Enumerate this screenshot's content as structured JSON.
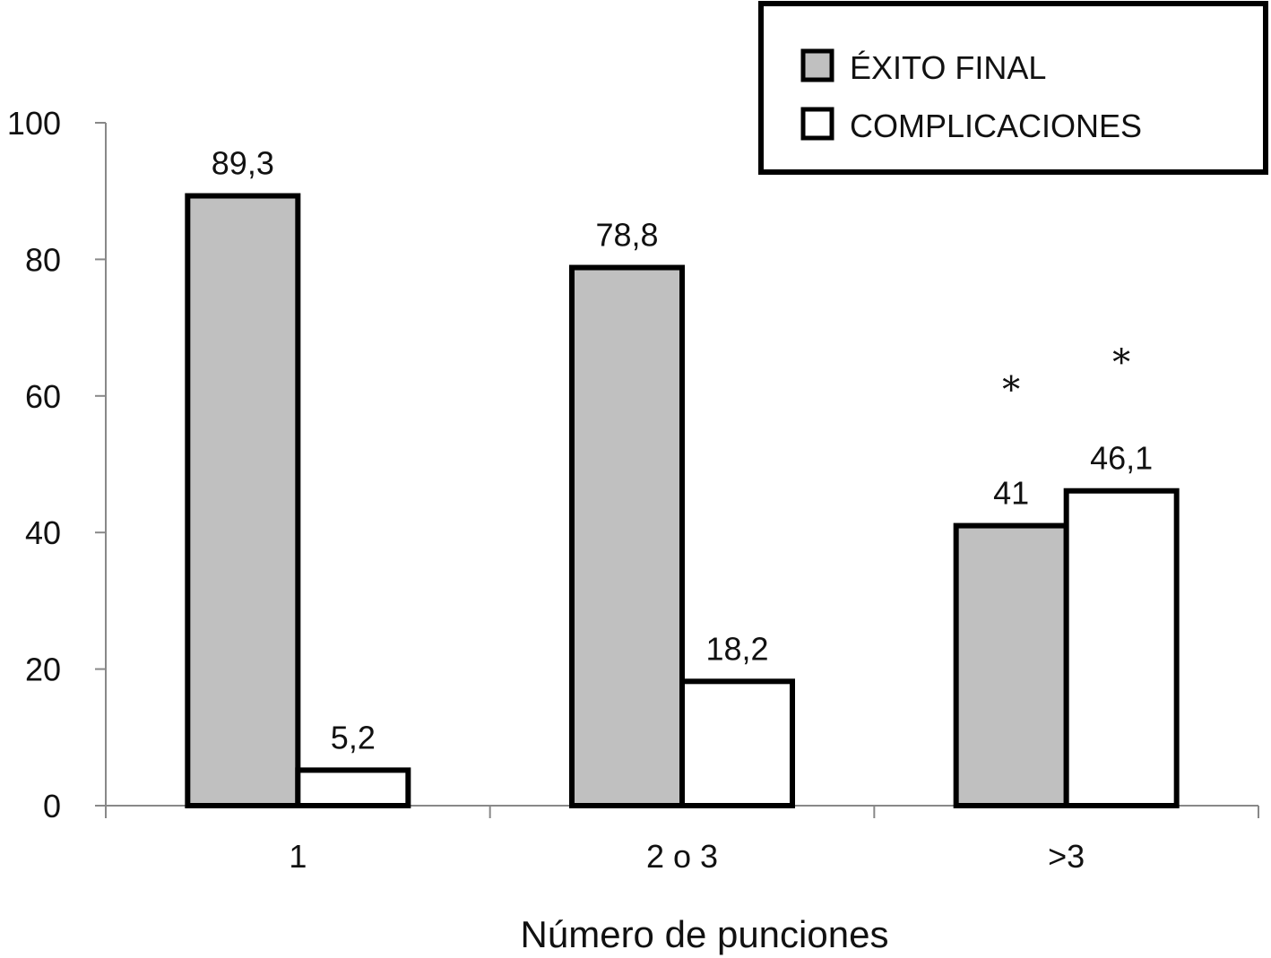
{
  "chart_data": {
    "type": "bar",
    "categories": [
      "1",
      "2 o 3",
      ">3"
    ],
    "series": [
      {
        "name": "ÉXITO FINAL",
        "values": [
          89.3,
          78.8,
          41
        ],
        "labels": [
          "89,3",
          "78,8",
          "41"
        ],
        "color": "#c0c0c0"
      },
      {
        "name": "COMPLICACIONES",
        "values": [
          5.2,
          18.2,
          46.1
        ],
        "labels": [
          "5,2",
          "18,2",
          "46,1"
        ],
        "color": "#ffffff"
      }
    ],
    "ylim": [
      0,
      100
    ],
    "yticks": [
      0,
      20,
      40,
      60,
      80,
      100
    ],
    "ytick_labels": [
      "0",
      "20",
      "40",
      "60",
      "80",
      "100"
    ],
    "xlabel": "Número de punciones",
    "ylabel": "",
    "title": "",
    "legend_position": "top-right",
    "annotations": [
      {
        "text": "*",
        "category": ">3",
        "series": "ÉXITO FINAL",
        "y": 62
      },
      {
        "text": "*",
        "category": ">3",
        "series": "COMPLICACIONES",
        "y": 66
      }
    ],
    "grid": false
  }
}
